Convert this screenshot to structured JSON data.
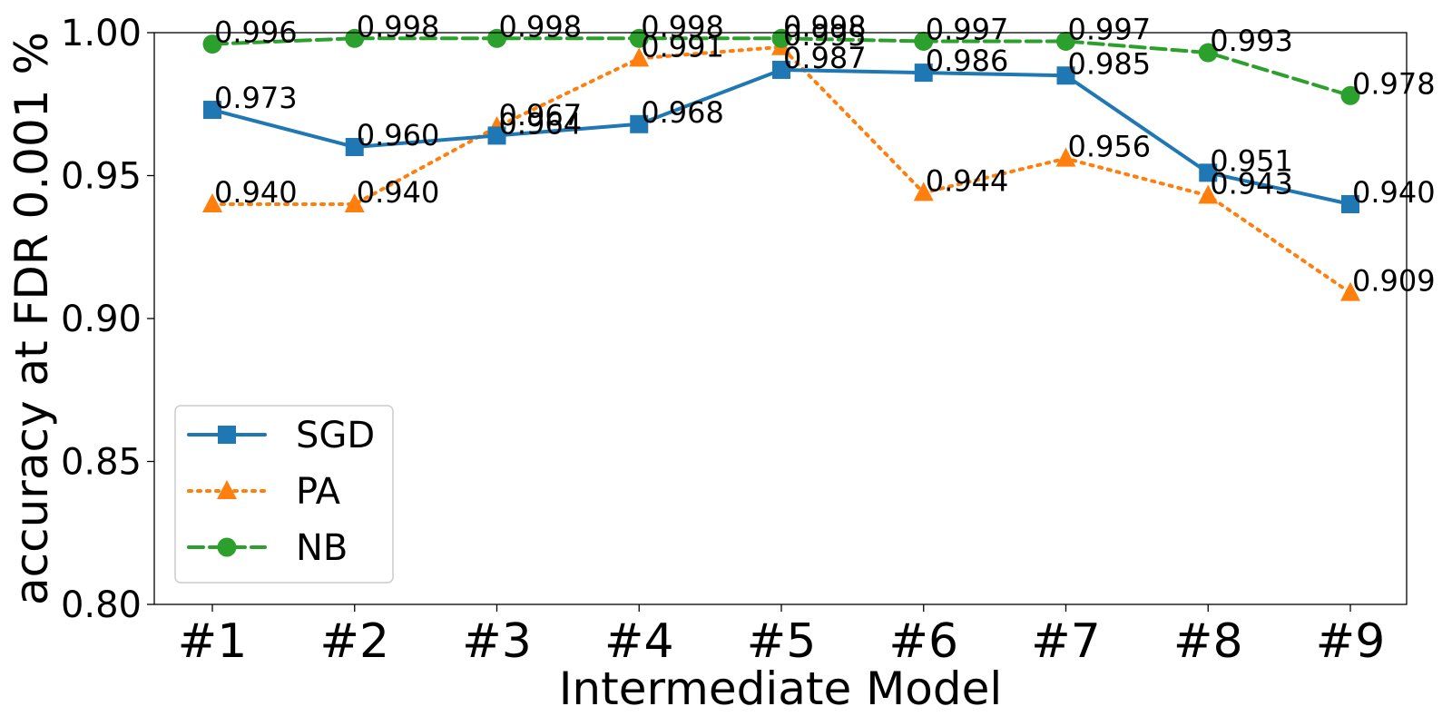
{
  "chart_data": {
    "type": "line",
    "xlabel": "Intermediate Model",
    "ylabel": "accuracy at FDR 0.001 %",
    "categories": [
      "#1",
      "#2",
      "#3",
      "#4",
      "#5",
      "#6",
      "#7",
      "#8",
      "#9"
    ],
    "ylim": [
      0.8,
      1.0
    ],
    "yticks": [
      "0.80",
      "0.85",
      "0.90",
      "0.95",
      "1.00"
    ],
    "grid": false,
    "legend_position": "lower-left",
    "series": [
      {
        "name": "SGD",
        "color": "#1f77b4",
        "line_style": "solid",
        "marker": "square",
        "values": [
          0.973,
          0.96,
          0.964,
          0.968,
          0.987,
          0.986,
          0.985,
          0.951,
          0.94
        ],
        "labels": [
          "0.973",
          "0.960",
          "0.964",
          "0.968",
          "0.987",
          "0.986",
          "0.985",
          "0.951",
          "0.940"
        ]
      },
      {
        "name": "PA",
        "color": "#ff7f0e",
        "line_style": "dotted",
        "marker": "triangle",
        "values": [
          0.94,
          0.94,
          0.967,
          0.991,
          0.995,
          0.944,
          0.956,
          0.943,
          0.909
        ],
        "labels": [
          "0.940",
          "0.940",
          "0.967",
          "0.991",
          "0.995",
          "0.944",
          "0.956",
          "0.943",
          "0.909"
        ]
      },
      {
        "name": "NB",
        "color": "#2ca02c",
        "line_style": "dashed",
        "marker": "circle",
        "values": [
          0.996,
          0.998,
          0.998,
          0.998,
          0.998,
          0.997,
          0.997,
          0.993,
          0.978
        ],
        "labels": [
          "0.996",
          "0.998",
          "0.998",
          "0.998",
          "0.998",
          "0.997",
          "0.997",
          "0.993",
          "0.978"
        ]
      }
    ]
  }
}
